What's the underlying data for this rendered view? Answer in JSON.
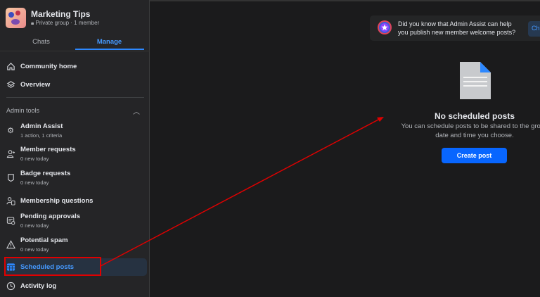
{
  "group": {
    "name": "Marketing Tips",
    "meta": "Private group · 1 member"
  },
  "tabs": [
    {
      "label": "Chats"
    },
    {
      "label": "Manage",
      "active": true
    }
  ],
  "nav": [
    {
      "label": "Community home",
      "icon": "home-icon"
    },
    {
      "label": "Overview",
      "icon": "layers-icon"
    }
  ],
  "admin_tools": {
    "title": "Admin tools",
    "items": [
      {
        "label": "Admin Assist",
        "sub": "1 action, 1 criteria",
        "icon": "gear-icon"
      },
      {
        "label": "Member requests",
        "sub": "0 new today",
        "icon": "person-add-icon"
      },
      {
        "label": "Badge requests",
        "sub": "0 new today",
        "icon": "badge-icon"
      },
      {
        "label": "Membership questions",
        "icon": "question-person-icon"
      },
      {
        "label": "Pending approvals",
        "sub": "0 new today",
        "icon": "pending-icon"
      },
      {
        "label": "Potential spam",
        "sub": "0 new today",
        "icon": "warning-icon"
      },
      {
        "label": "Scheduled posts",
        "icon": "calendar-icon",
        "selected": true
      },
      {
        "label": "Activity log",
        "icon": "clock-icon"
      }
    ]
  },
  "banner": {
    "text_line1": "Did you know that Admin Assist can help",
    "text_line2": "you publish new member welcome posts?",
    "button": "Ch"
  },
  "empty": {
    "title": "No scheduled posts",
    "desc_line1": "You can schedule posts to be shared to the group",
    "desc_line2": "date and time you choose.",
    "button": "Create post"
  },
  "colors": {
    "accent": "#2d88ff",
    "button": "#0866ff",
    "annotation": "#e00000"
  }
}
